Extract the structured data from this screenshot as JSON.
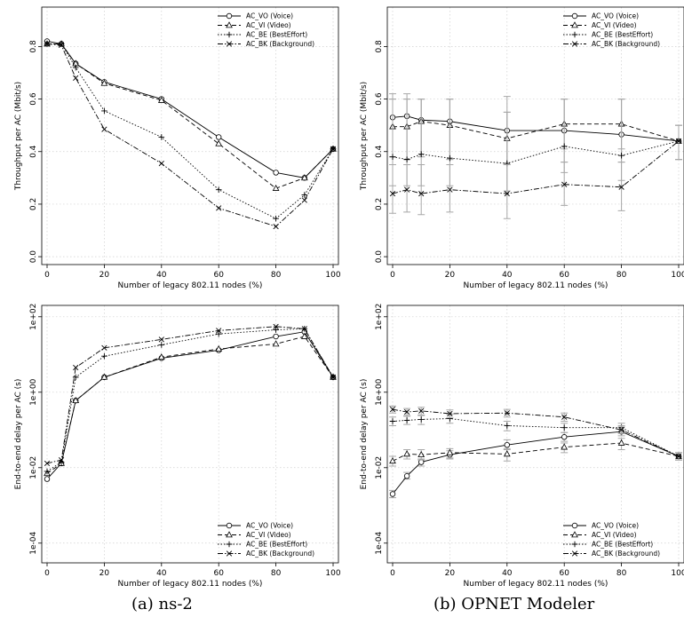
{
  "captions": [
    "(a) ns-2",
    "(b) OPNET Modeler"
  ],
  "legend_labels": [
    "AC_VO (Voice)",
    "AC_VI (Video)",
    "AC_BE (BestEffort)",
    "AC_BK (Background)"
  ],
  "chart_data": [
    {
      "id": "ns2-throughput",
      "type": "line",
      "xlabel": "Number of legacy 802.11 nodes (%)",
      "ylabel": "Throughput per AC (Mbit/s)",
      "xlim": [
        0,
        100
      ],
      "ylim": [
        -0.03,
        0.95
      ],
      "y_log": false,
      "x_ticks": [
        0,
        20,
        40,
        60,
        80,
        100
      ],
      "y_ticks": [
        0.0,
        0.2,
        0.4,
        0.6,
        0.8
      ],
      "y_tick_labels": [
        "0.0",
        "0.2",
        "0.4",
        "0.6",
        "0.8"
      ],
      "grid": true,
      "legend_position": "top-right",
      "x": [
        0,
        5,
        10,
        20,
        40,
        60,
        80,
        90,
        100
      ],
      "series": [
        {
          "name": "AC_VO (Voice)",
          "marker": "circle",
          "dash": "",
          "values": [
            0.82,
            0.81,
            0.735,
            0.665,
            0.6,
            0.455,
            0.32,
            0.3,
            0.41
          ]
        },
        {
          "name": "AC_VI (Video)",
          "marker": "triangle",
          "dash": "5 3",
          "values": [
            0.81,
            0.81,
            0.735,
            0.66,
            0.595,
            0.43,
            0.26,
            0.3,
            0.41
          ]
        },
        {
          "name": "AC_BE (BestEffort)",
          "marker": "plus",
          "dash": "1.5 2",
          "values": [
            0.81,
            0.81,
            0.72,
            0.555,
            0.455,
            0.255,
            0.145,
            0.235,
            0.41
          ]
        },
        {
          "name": "AC_BK (Background)",
          "marker": "cross",
          "dash": "6 2 1.5 2",
          "values": [
            0.81,
            0.805,
            0.68,
            0.485,
            0.355,
            0.185,
            0.115,
            0.215,
            0.41
          ]
        }
      ]
    },
    {
      "id": "opnet-throughput",
      "type": "line",
      "xlabel": "Number of legacy 802.11 nodes (%)",
      "ylabel": "Throughput per AC (Mbit/s)",
      "xlim": [
        0,
        100
      ],
      "ylim": [
        -0.03,
        0.95
      ],
      "y_log": false,
      "x_ticks": [
        0,
        20,
        40,
        60,
        80,
        100
      ],
      "y_ticks": [
        0.0,
        0.2,
        0.4,
        0.6,
        0.8
      ],
      "y_tick_labels": [
        "0.0",
        "0.2",
        "0.4",
        "0.6",
        "0.8"
      ],
      "grid": true,
      "legend_position": "top-right",
      "x": [
        0,
        5,
        10,
        20,
        40,
        60,
        80,
        100
      ],
      "error_bars": true,
      "series": [
        {
          "name": "AC_VO (Voice)",
          "marker": "circle",
          "dash": "",
          "values": [
            0.53,
            0.535,
            0.52,
            0.515,
            0.48,
            0.48,
            0.465,
            0.44
          ],
          "err_low": [
            0.38,
            0.37,
            0.38,
            0.37,
            0.35,
            0.36,
            0.36,
            0.37
          ],
          "err_high": [
            0.62,
            0.62,
            0.6,
            0.6,
            0.61,
            0.6,
            0.6,
            0.5
          ]
        },
        {
          "name": "AC_VI (Video)",
          "marker": "triangle",
          "dash": "5 3",
          "values": [
            0.495,
            0.495,
            0.515,
            0.5,
            0.45,
            0.505,
            0.505,
            0.44
          ],
          "err_low": [
            0.38,
            0.37,
            0.38,
            0.37,
            0.35,
            0.41,
            0.41,
            0.37
          ],
          "err_high": [
            0.6,
            0.6,
            0.6,
            0.6,
            0.55,
            0.6,
            0.6,
            0.5
          ]
        },
        {
          "name": "AC_BE (BestEffort)",
          "marker": "plus",
          "dash": "1.5 2",
          "values": [
            0.38,
            0.37,
            0.39,
            0.375,
            0.355,
            0.42,
            0.385,
            0.44
          ],
          "err_low": [
            0.27,
            0.27,
            0.27,
            0.27,
            0.25,
            0.32,
            0.29,
            0.37
          ],
          "err_high": [
            0.6,
            0.6,
            0.6,
            0.6,
            0.55,
            0.6,
            0.6,
            0.5
          ]
        },
        {
          "name": "AC_BK (Background)",
          "marker": "cross",
          "dash": "6 2 1.5 2",
          "values": [
            0.24,
            0.255,
            0.24,
            0.255,
            0.24,
            0.275,
            0.265,
            0.44
          ],
          "err_low": [
            0.165,
            0.17,
            0.16,
            0.17,
            0.145,
            0.195,
            0.175,
            0.37
          ],
          "err_high": [
            0.35,
            0.35,
            0.35,
            0.35,
            0.35,
            0.36,
            0.36,
            0.5
          ]
        }
      ]
    },
    {
      "id": "ns2-delay",
      "type": "line",
      "xlabel": "Number of legacy 802.11 nodes (%)",
      "ylabel": "End-to-end delay per AC (s)",
      "xlim": [
        0,
        100
      ],
      "ylim": [
        3e-05,
        200
      ],
      "y_log": true,
      "x_ticks": [
        0,
        20,
        40,
        60,
        80,
        100
      ],
      "y_ticks": [
        0.0001,
        0.01,
        1,
        100
      ],
      "y_tick_labels": [
        "1e-04",
        "1e-02",
        "1e+00",
        "1e+02"
      ],
      "grid": true,
      "legend_position": "bottom-right",
      "x": [
        0,
        5,
        10,
        20,
        40,
        60,
        80,
        90,
        100
      ],
      "series": [
        {
          "name": "AC_VO (Voice)",
          "marker": "circle",
          "dash": "",
          "values": [
            0.005,
            0.013,
            0.6,
            2.5,
            8,
            13,
            30,
            40,
            2.5
          ]
        },
        {
          "name": "AC_VI (Video)",
          "marker": "triangle",
          "dash": "5 3",
          "values": [
            0.007,
            0.013,
            0.6,
            2.5,
            8.5,
            14,
            19,
            30,
            2.5
          ]
        },
        {
          "name": "AC_BE (BestEffort)",
          "marker": "plus",
          "dash": "1.5 2",
          "values": [
            0.008,
            0.014,
            2.5,
            9,
            18,
            35,
            45,
            48,
            2.5
          ]
        },
        {
          "name": "AC_BK (Background)",
          "marker": "cross",
          "dash": "6 2 1.5 2",
          "values": [
            0.013,
            0.016,
            4.5,
            15,
            25,
            43,
            55,
            48,
            2.5
          ]
        }
      ]
    },
    {
      "id": "opnet-delay",
      "type": "line",
      "xlabel": "Number of legacy 802.11 nodes (%)",
      "ylabel": "End-to-end delay per AC (s)",
      "xlim": [
        0,
        100
      ],
      "ylim": [
        3e-05,
        200
      ],
      "y_log": true,
      "x_ticks": [
        0,
        20,
        40,
        60,
        80,
        100
      ],
      "y_ticks": [
        0.0001,
        0.01,
        1,
        100
      ],
      "y_tick_labels": [
        "1e-04",
        "1e-02",
        "1e+00",
        "1e+02"
      ],
      "grid": true,
      "legend_position": "bottom-right",
      "x": [
        0,
        5,
        10,
        20,
        40,
        60,
        80,
        100
      ],
      "error_bars": true,
      "series": [
        {
          "name": "AC_VO (Voice)",
          "marker": "circle",
          "dash": "",
          "values": [
            0.002,
            0.006,
            0.014,
            0.022,
            0.04,
            0.065,
            0.09,
            0.02
          ],
          "err_low": [
            0.0016,
            0.005,
            0.011,
            0.017,
            0.03,
            0.05,
            0.07,
            0.016
          ],
          "err_high": [
            0.0025,
            0.0075,
            0.017,
            0.028,
            0.055,
            0.085,
            0.12,
            0.025
          ]
        },
        {
          "name": "AC_VI (Video)",
          "marker": "triangle",
          "dash": "5 3",
          "values": [
            0.015,
            0.023,
            0.022,
            0.025,
            0.023,
            0.035,
            0.045,
            0.02
          ],
          "err_low": [
            0.011,
            0.017,
            0.016,
            0.018,
            0.015,
            0.025,
            0.03,
            0.016
          ],
          "err_high": [
            0.02,
            0.03,
            0.03,
            0.032,
            0.032,
            0.045,
            0.06,
            0.025
          ]
        },
        {
          "name": "AC_BE (BestEffort)",
          "marker": "plus",
          "dash": "1.5 2",
          "values": [
            0.17,
            0.18,
            0.19,
            0.2,
            0.13,
            0.115,
            0.115,
            0.02
          ],
          "err_low": [
            0.13,
            0.14,
            0.14,
            0.15,
            0.095,
            0.085,
            0.085,
            0.016
          ],
          "err_high": [
            0.22,
            0.23,
            0.24,
            0.26,
            0.17,
            0.15,
            0.15,
            0.025
          ]
        },
        {
          "name": "AC_BK (Background)",
          "marker": "cross",
          "dash": "6 2 1.5 2",
          "values": [
            0.35,
            0.3,
            0.32,
            0.27,
            0.28,
            0.22,
            0.1,
            0.02
          ],
          "err_low": [
            0.28,
            0.24,
            0.25,
            0.21,
            0.22,
            0.17,
            0.08,
            0.016
          ],
          "err_high": [
            0.43,
            0.37,
            0.4,
            0.34,
            0.35,
            0.28,
            0.13,
            0.025
          ]
        }
      ]
    }
  ]
}
